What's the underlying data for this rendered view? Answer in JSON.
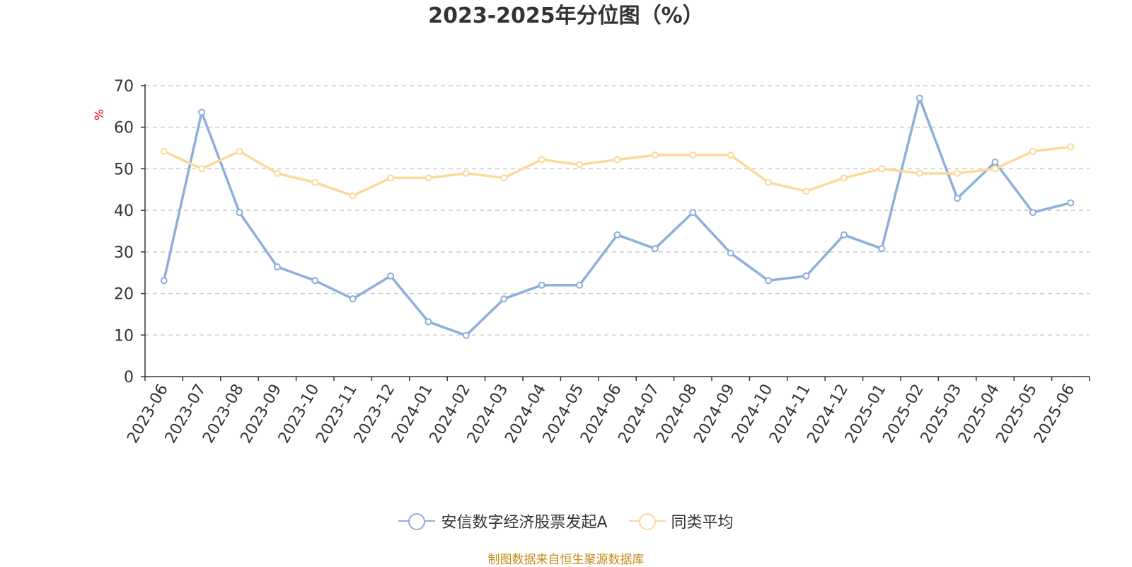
{
  "chart_data": {
    "type": "line",
    "title": "2023-2025年分位图（%）",
    "ylabel": "%",
    "xlabel": "",
    "ylim": [
      0,
      70
    ],
    "y_ticks": [
      0,
      10,
      20,
      30,
      40,
      50,
      60,
      70
    ],
    "grid": true,
    "legend_position": "bottom",
    "categories": [
      "2023-06",
      "2023-07",
      "2023-08",
      "2023-09",
      "2023-10",
      "2023-11",
      "2023-12",
      "2024-01",
      "2024-02",
      "2024-03",
      "2024-04",
      "2024-05",
      "2024-06",
      "2024-07",
      "2024-08",
      "2024-09",
      "2024-10",
      "2024-11",
      "2024-12",
      "2025-01",
      "2025-02",
      "2025-03",
      "2025-04",
      "2025-05",
      "2025-06"
    ],
    "series": [
      {
        "name": "安信数字经济股票发起A",
        "color": "#8eaedb",
        "values": [
          23.1,
          63.6,
          39.5,
          26.4,
          23.1,
          18.7,
          24.2,
          13.2,
          9.9,
          18.7,
          22.0,
          22.0,
          34.1,
          30.8,
          39.5,
          29.7,
          23.1,
          24.2,
          34.1,
          30.8,
          67.0,
          42.9,
          51.6,
          39.5,
          41.8
        ]
      },
      {
        "name": "同类平均",
        "color": "#fbd99a",
        "values": [
          54.2,
          50.0,
          54.2,
          48.9,
          46.7,
          43.5,
          47.8,
          47.8,
          48.9,
          47.8,
          52.2,
          51.0,
          52.2,
          53.3,
          53.3,
          53.3,
          46.7,
          44.6,
          47.8,
          50.0,
          48.9,
          48.9,
          50.0,
          54.2,
          55.3
        ]
      }
    ]
  },
  "source_note": "制图数据来自恒生聚源数据库"
}
